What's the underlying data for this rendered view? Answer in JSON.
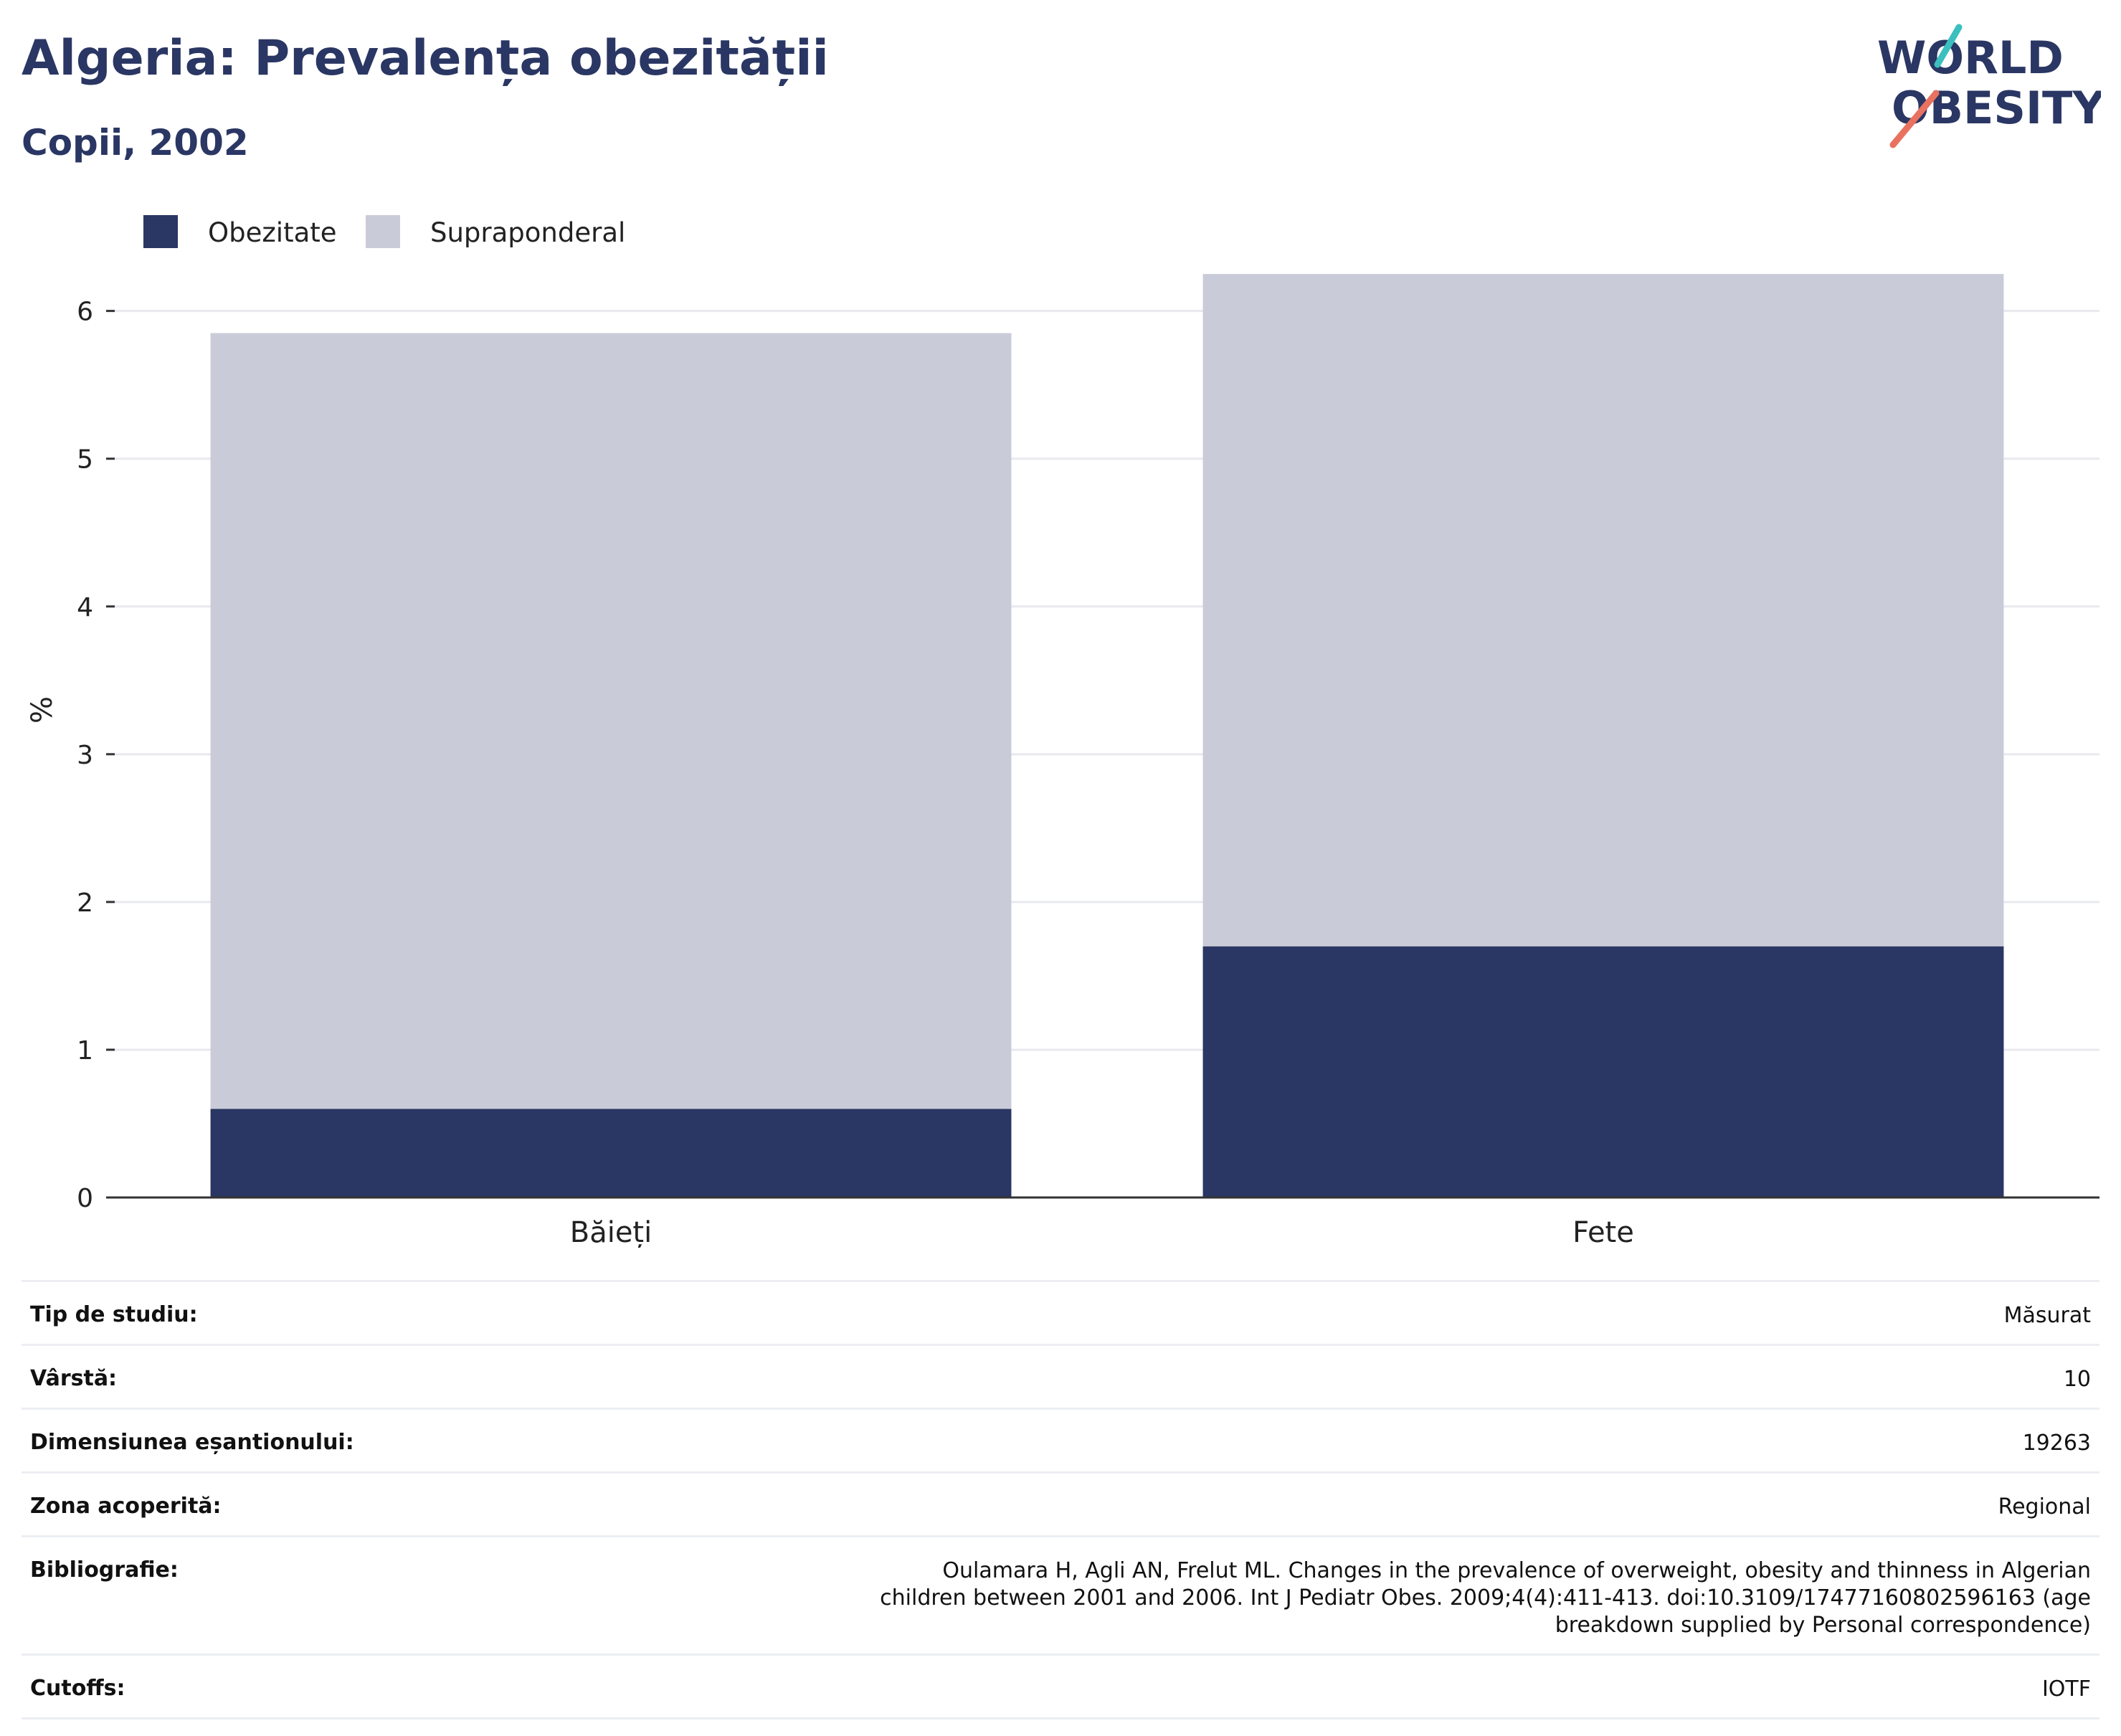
{
  "header": {
    "title": "Algeria: Prevalența obezității",
    "subtitle": "Copii, 2002"
  },
  "logo": {
    "line1": "WORLD",
    "line2": "OBESITY"
  },
  "colors": {
    "obesity": "#2a3663",
    "overweight": "#c9ccd8",
    "text": "#2a3663",
    "grid": "#e8e9ee",
    "axis": "#333333"
  },
  "chart_data": {
    "type": "bar",
    "stacked": true,
    "categories": [
      "Băieți",
      "Fete"
    ],
    "series": [
      {
        "name": "Obezitate",
        "values": [
          0.6,
          1.7
        ]
      },
      {
        "name": "Supraponderal",
        "values": [
          5.25,
          4.55
        ]
      }
    ],
    "ylabel": "%",
    "xlabel": "",
    "ylim": [
      0,
      6.6
    ],
    "yticks": [
      0,
      1,
      2,
      3,
      4,
      5,
      6
    ],
    "grid": true,
    "legend_position": "top-left"
  },
  "info": [
    {
      "label": "Tip de studiu:",
      "value": "Măsurat"
    },
    {
      "label": "Vârstă:",
      "value": "10"
    },
    {
      "label": "Dimensiunea eșantionului:",
      "value": "19263"
    },
    {
      "label": "Zona acoperită:",
      "value": "Regional"
    },
    {
      "label": "Bibliografie:",
      "value": "Oulamara H, Agli AN, Frelut ML. Changes in the prevalence of overweight, obesity and thinness in Algerian children between 2001 and 2006. Int J Pediatr Obes. 2009;4(4):411-413. doi:10.3109/17477160802596163 (age breakdown supplied by Personal correspondence)"
    },
    {
      "label": "Cutoffs:",
      "value": "IOTF"
    }
  ]
}
